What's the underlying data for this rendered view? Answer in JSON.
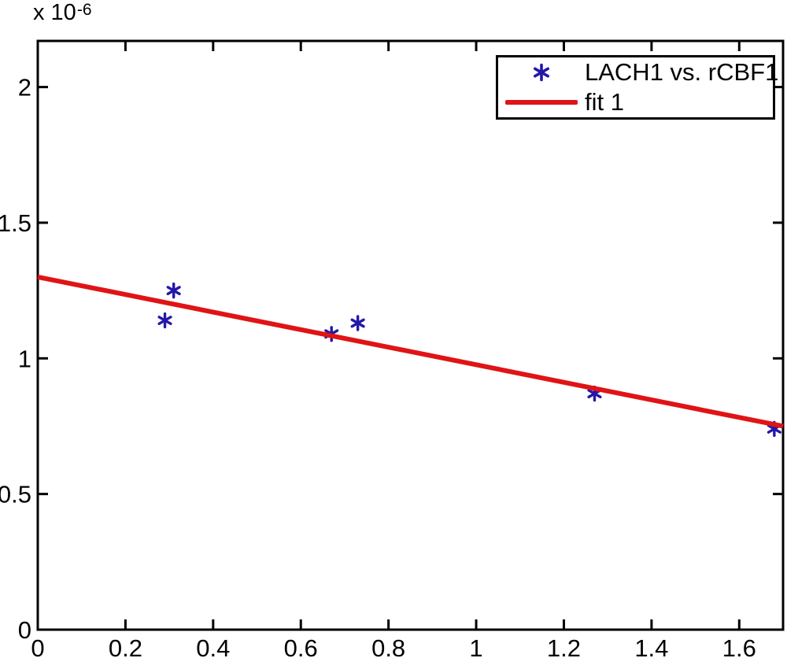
{
  "figure": {
    "y_axis_multiplier": {
      "base": "x 10",
      "exponent": "-6"
    }
  },
  "chart_data": {
    "type": "scatter",
    "title": "",
    "xlabel": "",
    "ylabel": "",
    "y_unit_multiplier": "1e-6",
    "xlim": [
      0,
      1.7
    ],
    "ylim": [
      0,
      2.17
    ],
    "grid": false,
    "legend_position": "top-right",
    "xticks": {
      "values": [
        0,
        0.2,
        0.4,
        0.6,
        0.8,
        1,
        1.2,
        1.4,
        1.6
      ],
      "labels": [
        "0",
        "0.2",
        "0.4",
        "0.6",
        "0.8",
        "1",
        "1.2",
        "1.4",
        "1.6"
      ]
    },
    "yticks": {
      "values": [
        0,
        0.5,
        1,
        1.5,
        2
      ],
      "labels": [
        "0",
        "0.5",
        "1",
        "1.5",
        "2"
      ]
    },
    "series": [
      {
        "name": "LACH1 vs. rCBF1",
        "type": "scatter",
        "marker": "asterisk",
        "color": "#2318a8",
        "points": [
          [
            0.29,
            1.14
          ],
          [
            0.31,
            1.25
          ],
          [
            0.67,
            1.09
          ],
          [
            0.73,
            1.13
          ],
          [
            1.27,
            0.87
          ],
          [
            1.68,
            0.74
          ]
        ]
      },
      {
        "name": "fit 1",
        "type": "line",
        "color": "#e01414",
        "line_width": 6,
        "points": [
          [
            0,
            1.3
          ],
          [
            1.7,
            0.75
          ]
        ]
      }
    ],
    "axis_color": "#000000",
    "plot_background": "#ffffff"
  }
}
